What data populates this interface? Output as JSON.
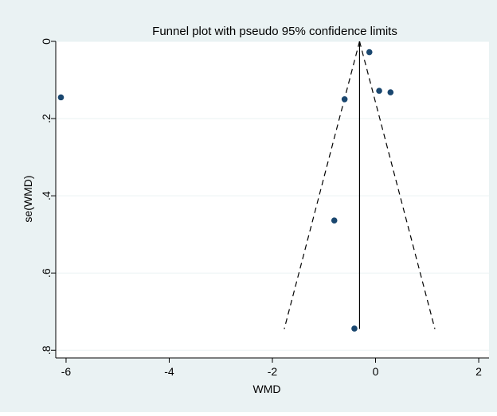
{
  "chart_data": {
    "type": "scatter",
    "title": "Funnel plot with pseudo 95% confidence limits",
    "xlabel": "WMD",
    "ylabel": "se(WMD)",
    "xlim": [
      -6.2,
      2.2
    ],
    "ylim": [
      0,
      0.82
    ],
    "y_reversed": true,
    "x_ticks": [
      "-6",
      "-4",
      "-2",
      "0",
      "2"
    ],
    "x_tick_values": [
      -6,
      -4,
      -2,
      0,
      2
    ],
    "y_ticks": [
      "0",
      ".2",
      ".4",
      ".6",
      ".8"
    ],
    "y_tick_values": [
      0,
      0.2,
      0.4,
      0.6,
      0.8
    ],
    "grid": true,
    "legend": "none",
    "points": [
      {
        "x": -6.1,
        "y": 0.145
      },
      {
        "x": -0.12,
        "y": 0.028
      },
      {
        "x": 0.07,
        "y": 0.128
      },
      {
        "x": 0.29,
        "y": 0.132
      },
      {
        "x": -0.6,
        "y": 0.15
      },
      {
        "x": -0.8,
        "y": 0.464
      },
      {
        "x": -0.41,
        "y": 0.744
      }
    ],
    "pooled_estimate": -0.31,
    "funnel_se_max": 0.745,
    "z": 1.96,
    "colors": {
      "background": "#eaf2f3",
      "plot_background": "#ffffff",
      "marker": "#1a476f",
      "grid": "#eaf2f3",
      "lines": "#000000"
    }
  }
}
